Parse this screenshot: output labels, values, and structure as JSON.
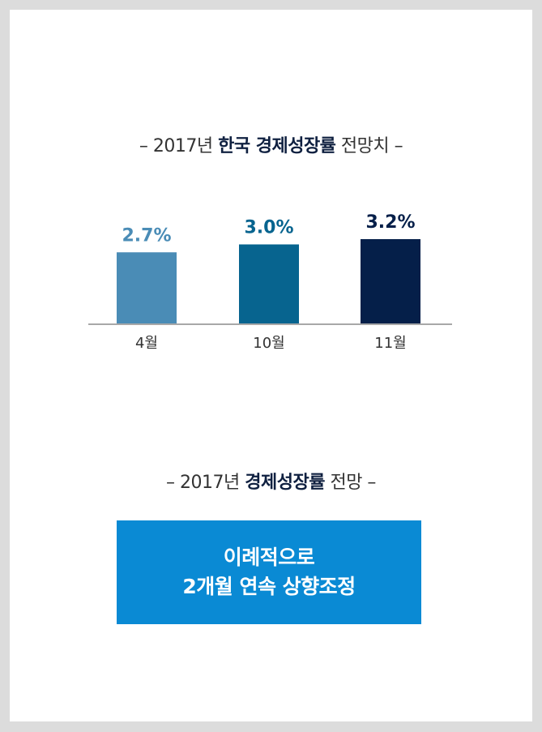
{
  "title1": {
    "prefix": "– 2017년 ",
    "bold": "한국 경제성장률",
    "suffix": " 전망치 –"
  },
  "chart_data": {
    "type": "bar",
    "title": "– 2017년 한국 경제성장률 전망치 –",
    "categories": [
      "4월",
      "10월",
      "11월"
    ],
    "values": [
      2.7,
      3.0,
      3.2
    ],
    "labels": [
      "2.7%",
      "3.0%",
      "3.2%"
    ],
    "colors": [
      "#4a8cb6",
      "#07648f",
      "#051f49"
    ],
    "label_colors": [
      "#4a8cb6",
      "#07648f",
      "#051f49"
    ],
    "ylim": [
      0,
      3.2
    ],
    "grid": false,
    "xlabel": "",
    "ylabel": ""
  },
  "title2": {
    "prefix": "– 2017년 ",
    "bold": "경제성장률",
    "suffix": " 전망 –"
  },
  "callout": {
    "line1": "이례적으로",
    "line2": "2개월 연속 상향조정",
    "bg_color": "#0a8ad4"
  }
}
